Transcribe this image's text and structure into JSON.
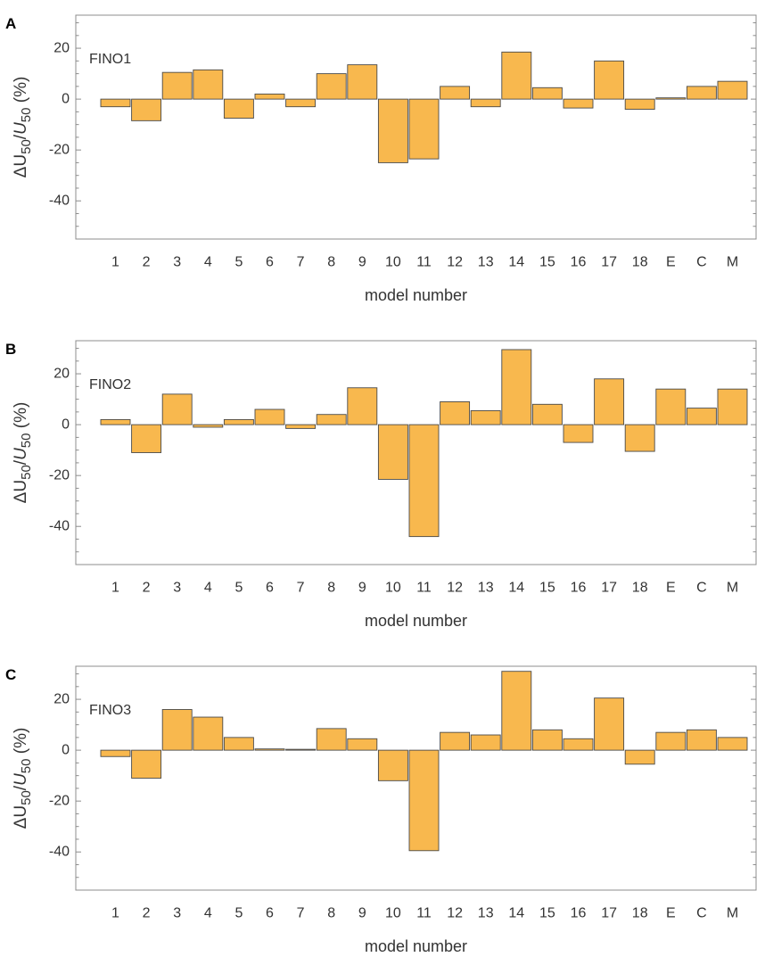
{
  "colors": {
    "bar_fill": "#F8B84E",
    "bar_stroke": "#4a4a4a",
    "frame": "#8c8c8c",
    "text": "#333333",
    "panel_letter": "#000000"
  },
  "chart_data": [
    {
      "type": "bar",
      "panel_label": "A",
      "station": "FINO1",
      "categories": [
        "1",
        "2",
        "3",
        "4",
        "5",
        "6",
        "7",
        "8",
        "9",
        "10",
        "11",
        "12",
        "13",
        "14",
        "15",
        "16",
        "17",
        "18",
        "E",
        "C",
        "M"
      ],
      "values": [
        -3,
        -8.5,
        10.5,
        11.5,
        -7.5,
        2,
        -3,
        10,
        13.5,
        -25,
        -23.5,
        5,
        -3,
        18.5,
        4.5,
        -3.5,
        15,
        -4,
        0.5,
        5,
        7
      ],
      "xlabel": "model number",
      "ylabel": {
        "prefix": "ΔU",
        "sub1": "50",
        "slash": "/U",
        "sub2": "50",
        "suffix": " (%)"
      },
      "ylim": [
        -55,
        33
      ],
      "yticks": [
        20,
        0,
        -20,
        -40
      ],
      "ytick_labels": [
        "20",
        "0",
        "-20",
        "-40"
      ],
      "legend": "none"
    },
    {
      "type": "bar",
      "panel_label": "B",
      "station": "FINO2",
      "categories": [
        "1",
        "2",
        "3",
        "4",
        "5",
        "6",
        "7",
        "8",
        "9",
        "10",
        "11",
        "12",
        "13",
        "14",
        "15",
        "16",
        "17",
        "18",
        "E",
        "C",
        "M"
      ],
      "values": [
        2,
        -11,
        12,
        -1,
        2,
        6,
        -1.5,
        4,
        14.5,
        -21.5,
        -44,
        9,
        5.5,
        29.5,
        8,
        -7,
        18,
        -10.5,
        14,
        6.5,
        14
      ],
      "xlabel": "model number",
      "ylabel": {
        "prefix": "ΔU",
        "sub1": "50",
        "slash": "/U",
        "sub2": "50",
        "suffix": " (%)"
      },
      "ylim": [
        -55,
        33
      ],
      "yticks": [
        20,
        0,
        -20,
        -40
      ],
      "ytick_labels": [
        "20",
        "0",
        "-20",
        "-40"
      ],
      "legend": "none"
    },
    {
      "type": "bar",
      "panel_label": "C",
      "station": "FINO3",
      "categories": [
        "1",
        "2",
        "3",
        "4",
        "5",
        "6",
        "7",
        "8",
        "9",
        "10",
        "11",
        "12",
        "13",
        "14",
        "15",
        "16",
        "17",
        "18",
        "E",
        "C",
        "M"
      ],
      "values": [
        -2.5,
        -11,
        16,
        13,
        5,
        0.5,
        0,
        8.5,
        4.5,
        -12,
        -39.5,
        7,
        6,
        31,
        8,
        4.5,
        20.5,
        -5.5,
        7,
        8,
        5
      ],
      "xlabel": "model number",
      "ylabel": {
        "prefix": "ΔU",
        "sub1": "50",
        "slash": "/U",
        "sub2": "50",
        "suffix": " (%)"
      },
      "ylim": [
        -55,
        33
      ],
      "yticks": [
        20,
        0,
        -20,
        -40
      ],
      "ytick_labels": [
        "20",
        "0",
        "-20",
        "-40"
      ],
      "legend": "none"
    }
  ]
}
